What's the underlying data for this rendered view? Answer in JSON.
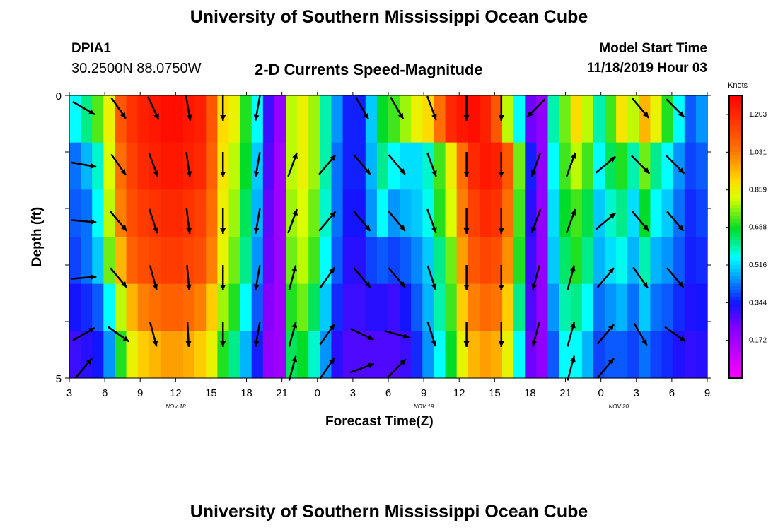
{
  "title": "University of Southern Mississippi Ocean Cube",
  "footer_title": "University of Southern Mississippi Ocean Cube",
  "station": {
    "id": "DPIA1",
    "coords": "30.2500N 88.0750W"
  },
  "model": {
    "label": "Model Start Time",
    "value": "11/18/2019 Hour 03"
  },
  "chart_data": {
    "type": "heatmap",
    "title": "2-D Currents Speed-Magnitude",
    "xlabel": "Forecast Time(Z)",
    "ylabel": "Depth (ft)",
    "y_ticks": [
      "0",
      "5"
    ],
    "ylim": [
      0,
      5
    ],
    "x_ticks": [
      "3",
      "6",
      "9",
      "12",
      "15",
      "18",
      "21",
      "0",
      "3",
      "6",
      "9",
      "12",
      "15",
      "18",
      "21",
      "0",
      "3",
      "6",
      "9"
    ],
    "date_labels": [
      {
        "label": "NOV 18",
        "at_tick": 3
      },
      {
        "label": "NOV 19",
        "at_tick": 10
      },
      {
        "label": "NOV 20",
        "at_tick": 15.5
      }
    ],
    "colorbar": {
      "unit": "Knots",
      "range": [
        0.0,
        1.29
      ],
      "ticks": [
        "1.203",
        "1.031",
        "0.859",
        "0.688",
        "0.516",
        "0.344",
        "0.172"
      ]
    },
    "time_hours": [
      3,
      4,
      5,
      6,
      7,
      8,
      9,
      10,
      11,
      12,
      13,
      14,
      15,
      16,
      17,
      18,
      19,
      20,
      21,
      22,
      23,
      24,
      25,
      26,
      27,
      28,
      29,
      30,
      31,
      32,
      33,
      34,
      35,
      36,
      37,
      38,
      39,
      40,
      41,
      42,
      43,
      44,
      45,
      46,
      47,
      48,
      49,
      50,
      51,
      52,
      53,
      54,
      55,
      56,
      57,
      58
    ],
    "depth_layers_ft": [
      0,
      1,
      2,
      3,
      4,
      5
    ],
    "speed_knots_by_layer": [
      [
        0.55,
        0.62,
        0.73,
        0.85,
        1.1,
        1.18,
        1.22,
        1.24,
        1.26,
        1.26,
        1.24,
        1.22,
        1.1,
        0.9,
        0.85,
        0.7,
        0.55,
        0.3,
        0.2,
        0.8,
        0.85,
        0.78,
        0.6,
        0.45,
        0.35,
        0.35,
        0.5,
        0.68,
        0.72,
        0.78,
        0.85,
        0.9,
        1.05,
        1.2,
        1.24,
        1.26,
        1.22,
        1.1,
        0.8,
        0.55,
        0.25,
        0.2,
        0.6,
        0.75,
        0.9,
        0.8,
        0.6,
        0.72,
        0.88,
        0.8,
        0.95,
        0.85,
        0.7,
        0.55,
        0.4,
        0.45
      ],
      [
        0.42,
        0.48,
        0.58,
        0.82,
        1.05,
        1.15,
        1.2,
        1.22,
        1.24,
        1.24,
        1.22,
        1.2,
        1.08,
        0.88,
        0.8,
        0.68,
        0.5,
        0.28,
        0.18,
        0.8,
        0.85,
        0.78,
        0.6,
        0.42,
        0.35,
        0.35,
        0.48,
        0.62,
        0.55,
        0.52,
        0.52,
        0.58,
        0.72,
        0.86,
        1.05,
        1.2,
        1.24,
        1.22,
        1.1,
        0.75,
        0.35,
        0.2,
        0.55,
        0.72,
        0.8,
        0.72,
        0.55,
        0.65,
        0.7,
        0.6,
        0.75,
        0.62,
        0.55,
        0.45,
        0.38,
        0.4
      ],
      [
        0.4,
        0.42,
        0.55,
        0.8,
        1.02,
        1.12,
        1.16,
        1.18,
        1.2,
        1.2,
        1.18,
        1.15,
        1.05,
        0.86,
        0.78,
        0.65,
        0.48,
        0.26,
        0.18,
        0.78,
        0.82,
        0.75,
        0.58,
        0.42,
        0.34,
        0.34,
        0.45,
        0.55,
        0.45,
        0.48,
        0.5,
        0.56,
        0.7,
        0.82,
        1.02,
        1.15,
        1.2,
        1.18,
        1.05,
        0.72,
        0.32,
        0.2,
        0.52,
        0.68,
        0.72,
        0.66,
        0.5,
        0.58,
        0.62,
        0.52,
        0.68,
        0.55,
        0.5,
        0.42,
        0.36,
        0.38
      ],
      [
        0.38,
        0.42,
        0.5,
        0.75,
        0.95,
        1.08,
        1.12,
        1.14,
        1.16,
        1.16,
        1.14,
        1.12,
        1.02,
        0.84,
        0.75,
        0.62,
        0.45,
        0.25,
        0.18,
        0.75,
        0.8,
        0.72,
        0.55,
        0.4,
        0.32,
        0.32,
        0.38,
        0.4,
        0.38,
        0.4,
        0.44,
        0.5,
        0.62,
        0.75,
        0.98,
        1.1,
        1.14,
        1.12,
        1.0,
        0.7,
        0.3,
        0.2,
        0.5,
        0.64,
        0.7,
        0.62,
        0.48,
        0.52,
        0.56,
        0.48,
        0.6,
        0.48,
        0.45,
        0.4,
        0.35,
        0.36
      ],
      [
        0.34,
        0.36,
        0.4,
        0.55,
        0.8,
        0.95,
        1.02,
        1.05,
        1.08,
        1.08,
        1.06,
        1.02,
        0.92,
        0.78,
        0.7,
        0.55,
        0.4,
        0.22,
        0.18,
        0.7,
        0.75,
        0.65,
        0.5,
        0.36,
        0.3,
        0.3,
        0.32,
        0.32,
        0.3,
        0.34,
        0.4,
        0.48,
        0.6,
        0.72,
        0.92,
        1.02,
        1.06,
        1.04,
        0.92,
        0.62,
        0.28,
        0.2,
        0.45,
        0.6,
        0.62,
        0.55,
        0.42,
        0.45,
        0.48,
        0.42,
        0.5,
        0.42,
        0.4,
        0.36,
        0.33,
        0.34
      ],
      [
        0.3,
        0.32,
        0.34,
        0.45,
        0.7,
        0.85,
        0.92,
        0.95,
        0.98,
        0.98,
        0.96,
        0.92,
        0.85,
        0.7,
        0.62,
        0.48,
        0.35,
        0.2,
        0.18,
        0.65,
        0.68,
        0.58,
        0.45,
        0.32,
        0.28,
        0.28,
        0.28,
        0.28,
        0.28,
        0.3,
        0.36,
        0.45,
        0.55,
        0.68,
        0.85,
        0.95,
        0.98,
        0.96,
        0.85,
        0.55,
        0.25,
        0.2,
        0.4,
        0.55,
        0.55,
        0.48,
        0.38,
        0.4,
        0.4,
        0.38,
        0.42,
        0.38,
        0.36,
        0.33,
        0.31,
        0.32
      ]
    ],
    "vector_time_hours": [
      4,
      7,
      10,
      13,
      16,
      19,
      22,
      25,
      28,
      31,
      34,
      37,
      40,
      43,
      46,
      49,
      52,
      55
    ],
    "vector_depth_ft": [
      0,
      1,
      2,
      3,
      4,
      5
    ],
    "vector_direction_deg_by_layer": [
      [
        120,
        145,
        155,
        170,
        180,
        190,
        null,
        null,
        150,
        150,
        160,
        180,
        180,
        225,
        null,
        null,
        140,
        135
      ],
      [
        100,
        145,
        160,
        172,
        180,
        190,
        20,
        40,
        140,
        140,
        160,
        180,
        180,
        200,
        20,
        50,
        135,
        135
      ],
      [
        95,
        140,
        162,
        173,
        180,
        190,
        20,
        40,
        140,
        140,
        160,
        180,
        180,
        200,
        20,
        50,
        140,
        140
      ],
      [
        85,
        140,
        165,
        175,
        180,
        190,
        15,
        35,
        140,
        140,
        162,
        180,
        180,
        195,
        15,
        40,
        145,
        140
      ],
      [
        60,
        125,
        165,
        177,
        180,
        190,
        15,
        35,
        115,
        105,
        162,
        180,
        180,
        195,
        15,
        40,
        150,
        125
      ],
      [
        40,
        null,
        null,
        null,
        null,
        null,
        15,
        35,
        70,
        45,
        null,
        null,
        null,
        null,
        15,
        40,
        null,
        null
      ]
    ]
  }
}
